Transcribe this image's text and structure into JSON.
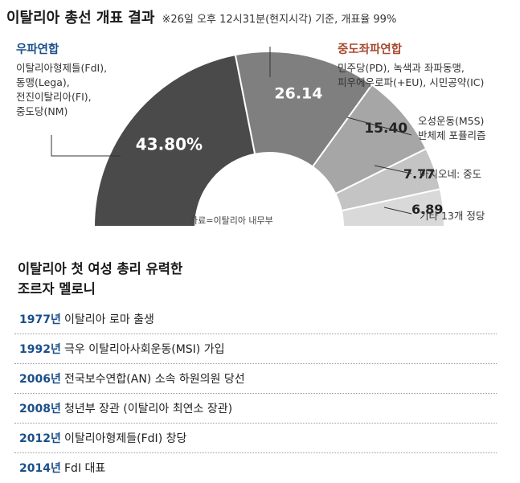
{
  "header": {
    "title": "이탈리아 총선 개표 결과",
    "note": "※26일 오후 12시31분(현지시각) 기준, 개표율 99%"
  },
  "blocs": {
    "left": {
      "title": "우파연합",
      "parties": [
        "이탈리아형제들(FdI),",
        "동맹(Lega),",
        "전진이탈리아(FI),",
        "중도당(NM)"
      ],
      "color": "#1b4f8a"
    },
    "right": {
      "title": "중도좌파연합",
      "parties": [
        "민주당(PD), 녹색과 좌파동맹,",
        "피우에우로파(+EU), 시민공약(IC)"
      ],
      "color": "#a64a30"
    }
  },
  "side_labels": {
    "m5s": [
      "오성운동(M5S)",
      "반체제 포퓰리즘"
    ],
    "action": "아치오네: 중도",
    "others": "기타 13개 정당"
  },
  "source": "자료=이탈리아 내무부",
  "chart_data": {
    "type": "pie",
    "subtype": "half-donut",
    "title": "이탈리아 총선 개표 결과",
    "categories": [
      "우파연합",
      "중도좌파연합",
      "오성운동(M5S)",
      "아치오네",
      "기타 13개 정당"
    ],
    "values": [
      43.8,
      26.14,
      15.4,
      7.77,
      6.89
    ],
    "value_labels": [
      "43.80%",
      "26.14",
      "15.40",
      "7.77",
      "6.89"
    ],
    "colors": [
      "#4a4a4a",
      "#7f7f7f",
      "#a6a6a6",
      "#c4c4c4",
      "#d9d9d9"
    ],
    "text_colors": [
      "#ffffff",
      "#ffffff",
      "#222222",
      "#222222",
      "#222222"
    ],
    "unit": "%"
  },
  "bio": {
    "title_lines": [
      "이탈리아 첫 여성 총리 유력한",
      "조르자 멜로니"
    ],
    "timeline": [
      {
        "year": "1977년",
        "text": "이탈리아 로마 출생"
      },
      {
        "year": "1992년",
        "text": "극우 이탈리아사회운동(MSI) 가입"
      },
      {
        "year": "2006년",
        "text": "전국보수연합(AN) 소속 하원의원 당선"
      },
      {
        "year": "2008년",
        "text": "청년부 장관 (이탈리아 최연소 장관)"
      },
      {
        "year": "2012년",
        "text": "이탈리아형제들(FdI) 창당"
      },
      {
        "year": "2014년",
        "text": "FdI 대표"
      }
    ]
  }
}
